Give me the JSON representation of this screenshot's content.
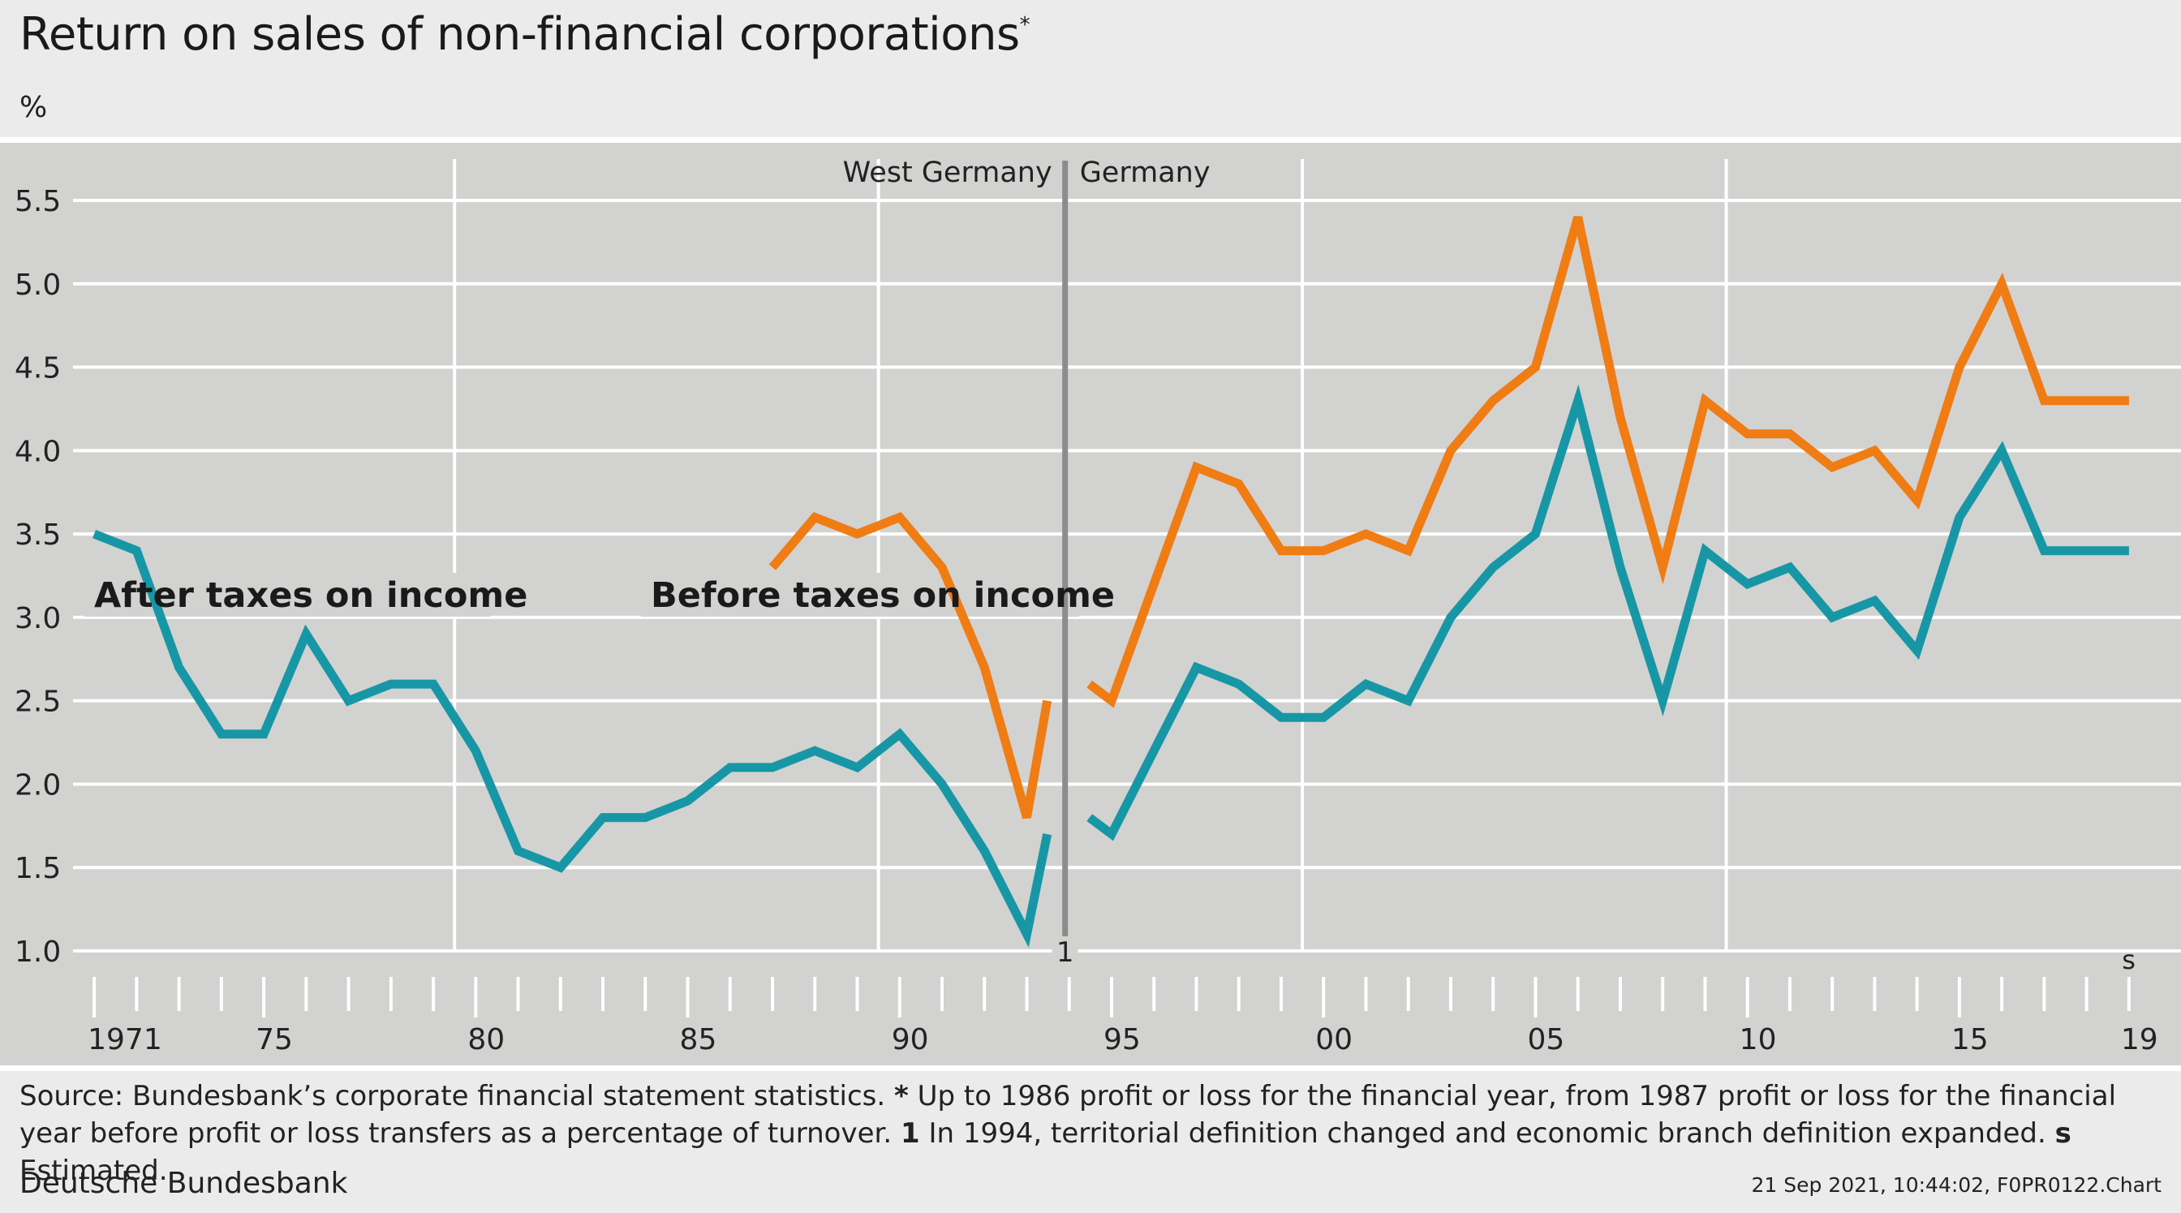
{
  "header": {
    "title": "Return on sales of non-financial corporations",
    "title_marker": "*",
    "unit": "%"
  },
  "footer": {
    "source_lead": "Source: Bundesbank’s corporate financial statement statistics.",
    "note_star_marker": "*",
    "note_star": "Up to 1986 profit or loss for the financial year, from 1987 profit or loss for the financial year before profit or loss transfers as a percentage of turnover.",
    "note_1_marker": "1",
    "note_1": "In 1994, territorial definition changed and economic branch definition expanded.",
    "note_s_marker": "s",
    "note_s": "Estimated.",
    "organisation": "Deutsche Bundesbank",
    "stamp": "21 Sep 2021, 10:44:02, F0PR0122.Chart"
  },
  "chart_data": {
    "type": "line",
    "colors": {
      "background": "#d2d2d1",
      "grid": "#ffffff",
      "divider": "#8c8c8c"
    },
    "ylim": [
      1.0,
      5.7
    ],
    "y_ticks": [
      "1.0",
      "1.5",
      "2.0",
      "2.5",
      "3.0",
      "3.5",
      "4.0",
      "4.5",
      "5.0",
      "5.5"
    ],
    "x_ticks": [
      "1971",
      "75",
      "80",
      "85",
      "90",
      "95",
      "00",
      "05",
      "10",
      "15",
      "19"
    ],
    "xlim": [
      1970.5,
      2019.5
    ],
    "break_year": 1994,
    "region_labels": {
      "left": "West Germany",
      "right": "Germany"
    },
    "break_marker": "1",
    "estimate_marker": "s",
    "series": [
      {
        "name": "After taxes on income",
        "color": "#1797a6",
        "segments": [
          {
            "x": [
              1971,
              1972,
              1973,
              1974,
              1975,
              1976,
              1977,
              1978,
              1979,
              1980,
              1981,
              1982,
              1983,
              1984,
              1985,
              1986,
              1987,
              1988,
              1989,
              1990,
              1991,
              1992,
              1993,
              1994
            ],
            "y": [
              3.5,
              3.4,
              2.7,
              2.3,
              2.3,
              2.9,
              2.5,
              2.6,
              2.6,
              2.2,
              1.6,
              1.5,
              1.8,
              1.8,
              1.9,
              2.1,
              2.1,
              2.2,
              2.1,
              2.3,
              2.0,
              1.6,
              1.1,
              1.7
            ]
          },
          {
            "x": [
              1994,
              1995,
              1996,
              1997,
              1998,
              1999,
              2000,
              2001,
              2002,
              2003,
              2004,
              2005,
              2006,
              2007,
              2008,
              2009,
              2010,
              2011,
              2012,
              2013,
              2014,
              2015,
              2016,
              2017,
              2018,
              2019
            ],
            "y": [
              1.8,
              1.7,
              2.2,
              2.7,
              2.6,
              2.4,
              2.4,
              2.6,
              2.5,
              3.0,
              3.3,
              3.5,
              4.3,
              3.3,
              2.5,
              3.4,
              3.2,
              3.3,
              3.0,
              3.1,
              2.8,
              3.6,
              4.0,
              3.4,
              3.4,
              3.4
            ]
          }
        ]
      },
      {
        "name": "Before taxes on income",
        "color": "#f07c14",
        "segments": [
          {
            "x": [
              1987,
              1988,
              1989,
              1990,
              1991,
              1992,
              1993,
              1994
            ],
            "y": [
              3.3,
              3.6,
              3.5,
              3.6,
              3.3,
              2.7,
              1.8,
              2.5
            ]
          },
          {
            "x": [
              1994,
              1995,
              1996,
              1997,
              1998,
              1999,
              2000,
              2001,
              2002,
              2003,
              2004,
              2005,
              2006,
              2007,
              2008,
              2009,
              2010,
              2011,
              2012,
              2013,
              2014,
              2015,
              2016,
              2017,
              2018,
              2019
            ],
            "y": [
              2.6,
              2.5,
              3.2,
              3.9,
              3.8,
              3.4,
              3.4,
              3.5,
              3.4,
              4.0,
              4.3,
              4.5,
              5.4,
              4.2,
              3.3,
              4.3,
              4.1,
              4.1,
              3.9,
              4.0,
              3.7,
              4.5,
              5.0,
              4.3,
              4.3,
              4.3
            ]
          }
        ]
      }
    ]
  }
}
